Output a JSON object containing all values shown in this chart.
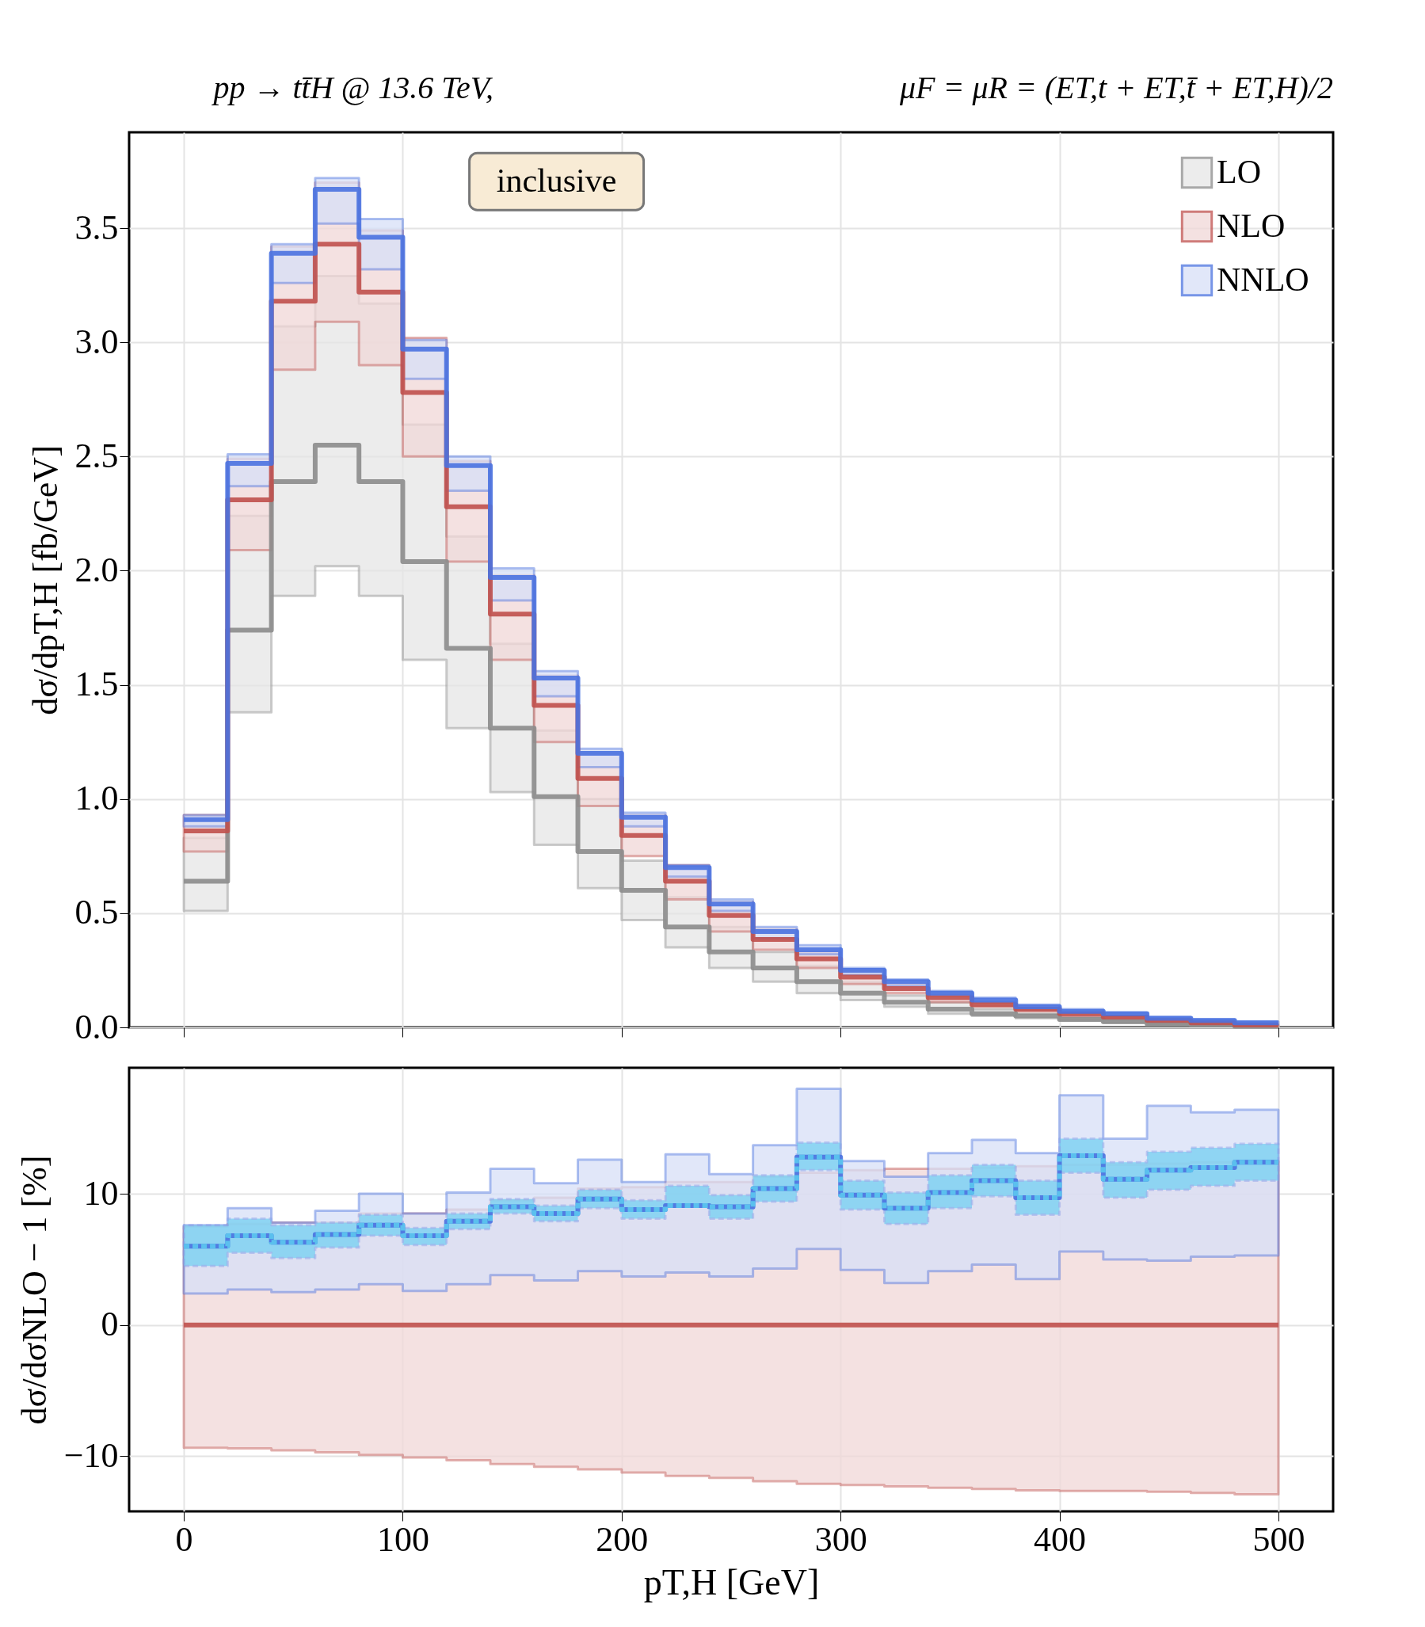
{
  "chart_data": [
    {
      "type": "step",
      "title": "pp → tt̄H @ 13.6 TeV,",
      "subtitle": "μF = μR = (ET,t + ET,t̄ + ET,H)/2",
      "ylabel": "dσ/dpT,H [fb/GeV]",
      "annotations": [
        "inclusive"
      ],
      "x": [
        0,
        20,
        40,
        60,
        80,
        100,
        120,
        140,
        160,
        180,
        200,
        220,
        240,
        260,
        280,
        300,
        320,
        340,
        360,
        380,
        400,
        420,
        440,
        460,
        480,
        500
      ],
      "xlim": [
        -25,
        525
      ],
      "xticks": [
        0,
        100,
        200,
        300,
        400,
        500
      ],
      "ylim": [
        0,
        3.92
      ],
      "yticks": [
        {
          "value": 0,
          "label": "0.0"
        },
        {
          "value": 0.5,
          "label": "0.5"
        },
        {
          "value": 1,
          "label": "1.0"
        },
        {
          "value": 1.5,
          "label": "1.5"
        },
        {
          "value": 2,
          "label": "2.0"
        },
        {
          "value": 2.5,
          "label": "2.5"
        },
        {
          "value": 3,
          "label": "3.0"
        },
        {
          "value": 3.5,
          "label": "3.5"
        }
      ],
      "tick_labels": "y",
      "grid": true,
      "legend": "top right",
      "series": [
        {
          "name": "LO",
          "color": "#8c8c8c",
          "values": [
            0.64,
            1.74,
            2.39,
            2.55,
            2.39,
            2.04,
            1.66,
            1.31,
            1.01,
            0.77,
            0.6,
            0.44,
            0.33,
            0.26,
            0.2,
            0.15,
            0.11,
            0.08,
            0.06,
            0.05,
            0.035,
            0.025,
            0.015,
            0.01,
            0.005,
            0.005
          ],
          "lower": [
            0.51,
            1.38,
            1.89,
            2.02,
            1.89,
            1.61,
            1.31,
            1.03,
            0.8,
            0.61,
            0.47,
            0.35,
            0.26,
            0.2,
            0.15,
            0.12,
            0.09,
            0.06,
            0.05,
            0.04,
            0.03,
            0.02,
            0.01,
            0.008,
            0.004,
            0.004
          ],
          "upper": [
            0.83,
            2.24,
            3.07,
            3.29,
            3.17,
            2.64,
            2.15,
            1.68,
            1.3,
            1.0,
            0.73,
            0.57,
            0.44,
            0.33,
            0.27,
            0.2,
            0.14,
            0.11,
            0.08,
            0.06,
            0.045,
            0.035,
            0.02,
            0.015,
            0.008,
            0.008
          ]
        },
        {
          "name": "NLO",
          "color": "#c0504d",
          "values": [
            0.86,
            2.31,
            3.18,
            3.43,
            3.22,
            2.78,
            2.28,
            1.81,
            1.41,
            1.09,
            0.84,
            0.64,
            0.49,
            0.385,
            0.3,
            0.22,
            0.17,
            0.13,
            0.1,
            0.08,
            0.06,
            0.045,
            0.03,
            0.02,
            0.01,
            0.01
          ],
          "lower": [
            0.77,
            2.09,
            2.88,
            3.09,
            2.9,
            2.5,
            2.04,
            1.61,
            1.25,
            0.97,
            0.75,
            0.56,
            0.42,
            0.34,
            0.26,
            0.19,
            0.15,
            0.11,
            0.09,
            0.07,
            0.05,
            0.04,
            0.026,
            0.018,
            0.009,
            0.009
          ],
          "upper": [
            0.93,
            2.49,
            3.42,
            3.7,
            3.49,
            3.02,
            2.48,
            1.98,
            1.54,
            1.2,
            0.93,
            0.71,
            0.55,
            0.43,
            0.33,
            0.25,
            0.19,
            0.15,
            0.11,
            0.09,
            0.07,
            0.05,
            0.034,
            0.022,
            0.011,
            0.011
          ]
        },
        {
          "name": "NNLO",
          "color": "#4a72e0",
          "values": [
            0.91,
            2.47,
            3.39,
            3.67,
            3.46,
            2.97,
            2.46,
            1.97,
            1.53,
            1.2,
            0.92,
            0.7,
            0.54,
            0.42,
            0.34,
            0.25,
            0.2,
            0.15,
            0.12,
            0.09,
            0.07,
            0.06,
            0.04,
            0.03,
            0.02,
            0.02
          ],
          "lower": [
            0.88,
            2.37,
            3.26,
            3.52,
            3.32,
            2.84,
            2.35,
            1.87,
            1.45,
            1.14,
            0.88,
            0.66,
            0.51,
            0.39,
            0.32,
            0.23,
            0.18,
            0.14,
            0.11,
            0.08,
            0.065,
            0.05,
            0.035,
            0.025,
            0.015,
            0.015
          ],
          "upper": [
            0.93,
            2.51,
            3.43,
            3.72,
            3.54,
            3.01,
            2.5,
            2.01,
            1.56,
            1.22,
            0.94,
            0.71,
            0.56,
            0.44,
            0.36,
            0.26,
            0.21,
            0.16,
            0.13,
            0.1,
            0.08,
            0.065,
            0.045,
            0.035,
            0.025,
            0.025
          ]
        }
      ]
    },
    {
      "type": "step",
      "xlabel": "pT,H [GeV]",
      "ylabel": "dσ/dσNLO − 1 [%]",
      "x": [
        0,
        20,
        40,
        60,
        80,
        100,
        120,
        140,
        160,
        180,
        200,
        220,
        240,
        260,
        280,
        300,
        320,
        340,
        360,
        380,
        400,
        420,
        440,
        460,
        480,
        500
      ],
      "xlim": [
        -25,
        525
      ],
      "xticks": [
        0,
        100,
        200,
        300,
        400,
        500
      ],
      "ylim": [
        -14.2,
        19.6
      ],
      "yticks": [
        {
          "value": -10,
          "label": "−10"
        },
        0,
        10
      ],
      "grid": true,
      "series": [
        {
          "color": "#c0504d",
          "values": [
            0,
            0,
            0,
            0,
            0,
            0,
            0,
            0,
            0,
            0,
            0,
            0,
            0,
            0,
            0,
            0,
            0,
            0,
            0,
            0,
            0,
            0,
            0,
            0,
            0,
            0
          ],
          "lower": [
            -9.35,
            -9.4,
            -9.55,
            -9.7,
            -9.9,
            -10.1,
            -10.3,
            -10.6,
            -10.8,
            -11.0,
            -11.25,
            -11.5,
            -11.65,
            -11.9,
            -12.1,
            -12.2,
            -12.3,
            -12.4,
            -12.5,
            -12.6,
            -12.65,
            -12.65,
            -12.7,
            -12.8,
            -12.9,
            -12.9
          ],
          "upper": [
            7.5,
            7.7,
            7.8,
            7.8,
            8.5,
            8.5,
            8.8,
            9.5,
            9.7,
            10.4,
            10.5,
            10.9,
            10.9,
            11.3,
            11.6,
            11.8,
            11.9,
            11.9,
            12.0,
            12.1,
            12.2,
            12.2,
            12.3,
            12.4,
            12.5,
            12.5
          ]
        },
        {
          "color": "#4a72e0",
          "values": [
            6.0,
            6.8,
            6.3,
            6.9,
            7.6,
            6.8,
            7.9,
            9.0,
            8.5,
            9.6,
            8.8,
            9.1,
            9.0,
            10.4,
            12.8,
            9.9,
            8.9,
            10.1,
            11.0,
            9.7,
            12.9,
            11.1,
            11.8,
            12.0,
            12.4,
            12.4
          ],
          "lower": [
            2.4,
            2.7,
            2.5,
            2.7,
            3.1,
            2.6,
            3.1,
            3.8,
            3.4,
            4.1,
            3.7,
            4.0,
            3.7,
            4.3,
            5.8,
            4.2,
            3.2,
            4.1,
            4.6,
            3.5,
            5.6,
            5.0,
            4.9,
            5.2,
            5.3,
            5.3
          ],
          "upper": [
            7.6,
            8.9,
            7.8,
            8.7,
            10.0,
            8.5,
            10.1,
            11.9,
            10.8,
            12.6,
            10.9,
            13.0,
            11.5,
            13.7,
            18.0,
            12.5,
            11.3,
            13.1,
            14.1,
            13.1,
            17.5,
            14.2,
            16.7,
            16.2,
            16.4,
            16.4
          ]
        },
        {
          "color": "#5bc8f0",
          "line_style": "dashed",
          "values": [
            6.0,
            6.8,
            6.3,
            6.9,
            7.6,
            6.8,
            7.9,
            9.0,
            8.5,
            9.6,
            8.8,
            9.1,
            9.0,
            10.4,
            12.8,
            9.9,
            8.9,
            10.1,
            11.0,
            9.7,
            12.9,
            11.1,
            11.8,
            12.0,
            12.4,
            12.4
          ],
          "lower": [
            4.5,
            5.5,
            5.1,
            5.9,
            6.8,
            6.1,
            7.3,
            8.5,
            7.9,
            8.9,
            8.1,
            9.0,
            8.1,
            9.4,
            11.8,
            8.8,
            7.7,
            8.9,
            9.8,
            8.4,
            11.6,
            9.7,
            10.3,
            10.6,
            11.0,
            11.0
          ],
          "upper": [
            7.6,
            8.1,
            7.6,
            7.8,
            8.4,
            7.4,
            8.5,
            9.6,
            9.1,
            10.3,
            9.5,
            10.6,
            9.9,
            11.4,
            13.9,
            11.0,
            10.1,
            11.4,
            12.2,
            11.0,
            14.2,
            12.4,
            13.2,
            13.5,
            13.8,
            13.8
          ]
        }
      ]
    }
  ]
}
